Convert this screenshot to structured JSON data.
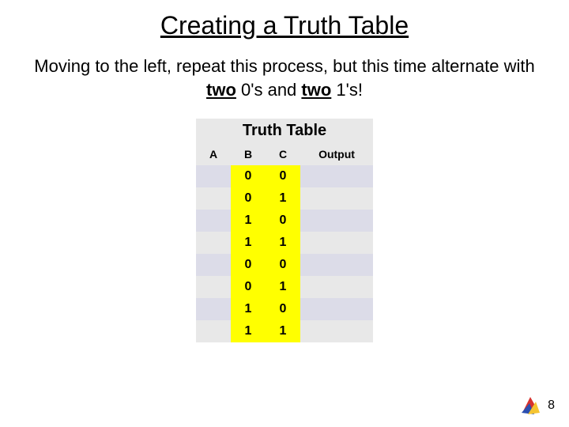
{
  "title": "Creating a Truth Table",
  "subtitle": {
    "pre": "Moving to the left, repeat this process, but this time alternate with ",
    "u1": "two",
    "mid1": " 0's and ",
    "u2": "two",
    "post": " 1's!"
  },
  "table": {
    "caption": "Truth Table",
    "headers": {
      "a": "A",
      "b": "B",
      "c": "C",
      "out": "Output"
    },
    "rows": [
      {
        "a": "",
        "b": "0",
        "c": "0",
        "out": ""
      },
      {
        "a": "",
        "b": "0",
        "c": "1",
        "out": ""
      },
      {
        "a": "",
        "b": "1",
        "c": "0",
        "out": ""
      },
      {
        "a": "",
        "b": "1",
        "c": "1",
        "out": ""
      },
      {
        "a": "",
        "b": "0",
        "c": "0",
        "out": ""
      },
      {
        "a": "",
        "b": "0",
        "c": "1",
        "out": ""
      },
      {
        "a": "",
        "b": "1",
        "c": "0",
        "out": ""
      },
      {
        "a": "",
        "b": "1",
        "c": "1",
        "out": ""
      }
    ],
    "colors": {
      "header_bg": "#e8e8e8",
      "odd_bg": "#dcdce8",
      "even_bg": "#e8e8e8",
      "highlight_bg": "#ffff00"
    },
    "col_widths": {
      "a": 44,
      "b": 44,
      "c": 44,
      "out": 92
    }
  },
  "page_number": "8",
  "logo_colors": {
    "red": "#d7322e",
    "blue": "#2b4fb0",
    "yellow": "#f5c431",
    "green": "#2a8b3a"
  }
}
